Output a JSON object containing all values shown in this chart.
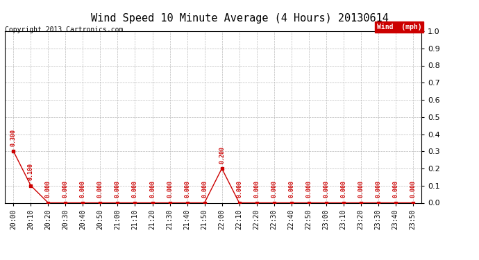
{
  "title": "Wind Speed 10 Minute Average (4 Hours) 20130614",
  "copyright": "Copyright 2013 Cartronics.com",
  "legend_label": "Wind  (mph)",
  "x_labels": [
    "20:00",
    "20:10",
    "20:20",
    "20:30",
    "20:40",
    "20:50",
    "21:00",
    "21:10",
    "21:20",
    "21:30",
    "21:40",
    "21:50",
    "22:00",
    "22:10",
    "22:20",
    "22:30",
    "22:40",
    "22:50",
    "23:00",
    "23:10",
    "23:20",
    "23:30",
    "23:40",
    "23:50"
  ],
  "y_values": [
    0.3,
    0.1,
    0.0,
    0.0,
    0.0,
    0.0,
    0.0,
    0.0,
    0.0,
    0.0,
    0.0,
    0.0,
    0.2,
    0.0,
    0.0,
    0.0,
    0.0,
    0.0,
    0.0,
    0.0,
    0.0,
    0.0,
    0.0,
    0.0
  ],
  "ylim": [
    0.0,
    1.0
  ],
  "yticks": [
    0.0,
    0.1,
    0.2,
    0.3,
    0.4,
    0.5,
    0.6,
    0.7,
    0.8,
    0.9,
    1.0
  ],
  "line_color": "#cc0000",
  "marker_color": "#cc0000",
  "label_color": "#cc0000",
  "legend_bg": "#cc0000",
  "legend_text_color": "#ffffff",
  "bg_color": "#ffffff",
  "grid_color": "#aaaaaa",
  "title_fontsize": 11,
  "copyright_fontsize": 7,
  "annotation_fontsize": 6.0,
  "tick_fontsize": 7,
  "ytick_fontsize": 8
}
